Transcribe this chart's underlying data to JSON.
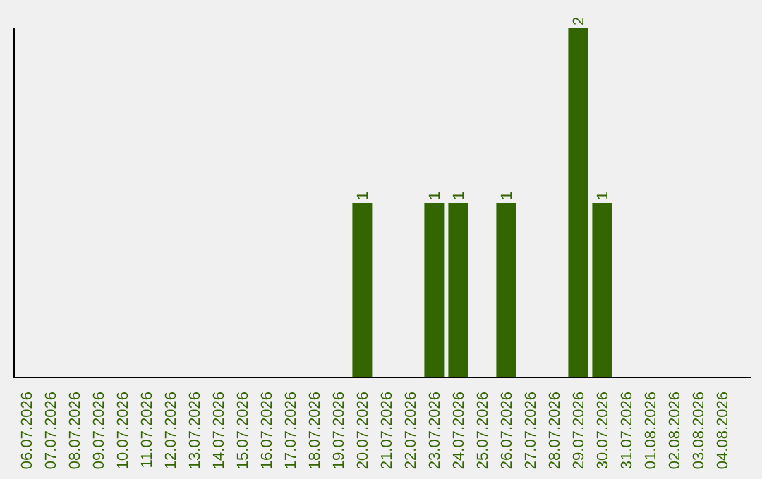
{
  "chart_data": {
    "type": "bar",
    "categories": [
      "06.07.2026",
      "07.07.2026",
      "08.07.2026",
      "09.07.2026",
      "10.07.2026",
      "11.07.2026",
      "12.07.2026",
      "13.07.2026",
      "14.07.2026",
      "15.07.2026",
      "16.07.2026",
      "17.07.2026",
      "18.07.2026",
      "19.07.2026",
      "20.07.2026",
      "21.07.2026",
      "22.07.2026",
      "23.07.2026",
      "24.07.2026",
      "25.07.2026",
      "26.07.2026",
      "27.07.2026",
      "28.07.2026",
      "29.07.2026",
      "30.07.2026",
      "31.07.2026",
      "01.08.2026",
      "02.08.2026",
      "03.08.2026",
      "04.08.2026"
    ],
    "values": [
      null,
      null,
      null,
      null,
      null,
      null,
      null,
      null,
      null,
      null,
      null,
      null,
      null,
      null,
      1,
      null,
      null,
      1,
      1,
      null,
      1,
      null,
      null,
      2,
      1,
      null,
      null,
      null,
      null,
      null
    ],
    "data_labels": true,
    "color": "#336600",
    "grid": false,
    "legend": false
  }
}
